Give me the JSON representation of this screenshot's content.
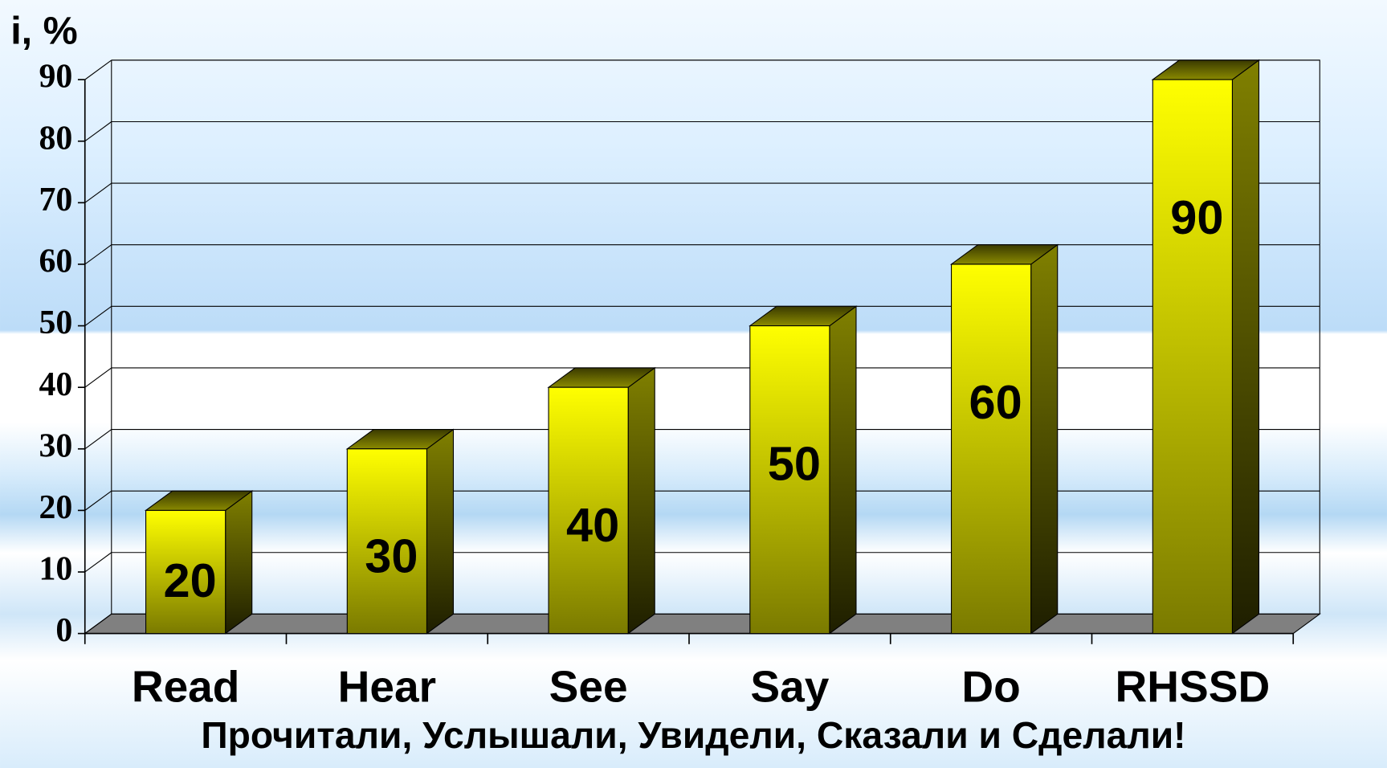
{
  "chart_data": {
    "type": "bar",
    "y_label": "i, %",
    "caption": "Прочитали, Услышали, Увидели, Сказали и Сделали!",
    "categories": [
      "Read",
      "Hear",
      "See",
      "Say",
      "Do",
      "RHSSD"
    ],
    "values": [
      20,
      30,
      40,
      50,
      60,
      90
    ],
    "color": "#ffff00",
    "ylim": [
      0,
      90
    ],
    "yticks": [
      0,
      10,
      20,
      30,
      40,
      50,
      60,
      70,
      80,
      90
    ],
    "grid": true
  }
}
